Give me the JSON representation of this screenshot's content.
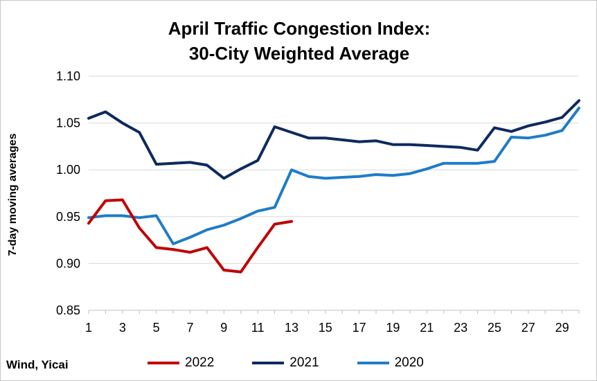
{
  "chart_data": {
    "type": "line",
    "title_line1": "April Traffic Congestion Index:",
    "title_line2": "30-City Weighted Average",
    "xlabel": "",
    "ylabel": "7-day moving averages",
    "source": "Wind, Yicai",
    "xlim": [
      1,
      30
    ],
    "ylim": [
      0.85,
      1.1
    ],
    "x_ticks": [
      1,
      3,
      5,
      7,
      9,
      11,
      13,
      15,
      17,
      19,
      21,
      23,
      25,
      27,
      29
    ],
    "y_ticks": [
      0.85,
      0.9,
      0.95,
      1.0,
      1.05,
      1.1
    ],
    "y_tick_labels": [
      "0.85",
      "0.90",
      "0.95",
      "1.00",
      "1.05",
      "1.10"
    ],
    "grid": "horizontal",
    "legend_position": "bottom",
    "series": [
      {
        "name": "2022",
        "color": "#C00000",
        "x": [
          1,
          2,
          3,
          4,
          5,
          6,
          7,
          8,
          9,
          10,
          11,
          12,
          13
        ],
        "values": [
          0.943,
          0.967,
          0.968,
          0.938,
          0.917,
          0.915,
          0.912,
          0.917,
          0.893,
          0.891,
          0.917,
          0.942,
          0.945
        ]
      },
      {
        "name": "2021",
        "color": "#0E2A5E",
        "x": [
          1,
          2,
          3,
          4,
          5,
          6,
          7,
          8,
          9,
          10,
          11,
          12,
          13,
          14,
          15,
          16,
          17,
          18,
          19,
          20,
          21,
          22,
          23,
          24,
          25,
          26,
          27,
          28,
          29,
          30
        ],
        "values": [
          1.055,
          1.062,
          1.05,
          1.04,
          1.006,
          1.007,
          1.008,
          1.005,
          0.991,
          1.001,
          1.01,
          1.046,
          1.04,
          1.034,
          1.034,
          1.032,
          1.03,
          1.031,
          1.027,
          1.027,
          1.026,
          1.025,
          1.024,
          1.021,
          1.045,
          1.041,
          1.047,
          1.051,
          1.056,
          1.074
        ]
      },
      {
        "name": "2020",
        "color": "#1F7CC8",
        "x": [
          1,
          2,
          3,
          4,
          5,
          6,
          7,
          8,
          9,
          10,
          11,
          12,
          13,
          14,
          15,
          16,
          17,
          18,
          19,
          20,
          21,
          22,
          23,
          24,
          25,
          26,
          27,
          28,
          29,
          30
        ],
        "values": [
          0.949,
          0.951,
          0.951,
          0.949,
          0.951,
          0.921,
          0.928,
          0.936,
          0.941,
          0.948,
          0.956,
          0.96,
          1.0,
          0.993,
          0.991,
          0.992,
          0.993,
          0.995,
          0.994,
          0.996,
          1.001,
          1.007,
          1.007,
          1.007,
          1.009,
          1.035,
          1.034,
          1.037,
          1.042,
          1.066
        ]
      }
    ]
  }
}
